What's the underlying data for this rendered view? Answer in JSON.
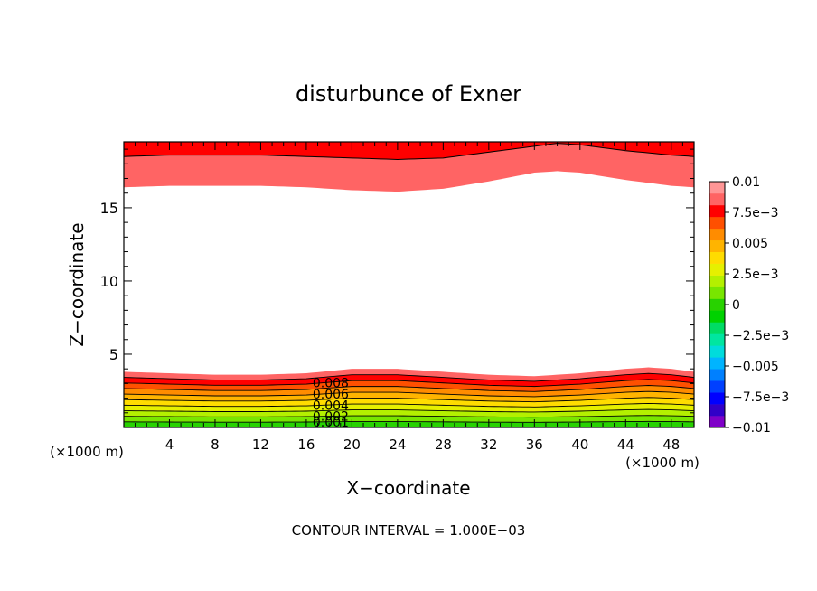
{
  "chart_data": {
    "type": "contour",
    "title": "disturbunce of Exner",
    "xlabel": "X−coordinate",
    "ylabel": "Z−coordinate",
    "x_unit": "(×1000 m)",
    "x_unit_right": "(×1000 m)",
    "xlim": [
      0,
      50
    ],
    "ylim": [
      0,
      19.5
    ],
    "x_ticks": [
      4,
      8,
      12,
      16,
      20,
      24,
      28,
      32,
      36,
      40,
      44,
      48
    ],
    "x_tick_labels": [
      "4",
      "8",
      "12",
      "16",
      "20",
      "24",
      "28",
      "32",
      "36",
      "40",
      "44",
      "48"
    ],
    "y_ticks": [
      5,
      10,
      15
    ],
    "y_tick_labels": [
      "5",
      "10",
      "15"
    ],
    "footer": "CONTOUR INTERVAL = 1.000E−03",
    "contour_interval": 0.001,
    "contour_labels": [
      "0.008",
      "0.006",
      "0.004",
      "0.002",
      "0.001"
    ],
    "colorbar": {
      "levels": [
        -0.01,
        -0.009,
        -0.008,
        -0.007,
        -0.006,
        -0.005,
        -0.004,
        -0.003,
        -0.002,
        -0.001,
        0,
        0.001,
        0.002,
        0.003,
        0.004,
        0.005,
        0.006,
        0.007,
        0.008,
        0.009,
        0.01
      ],
      "tick_labels": [
        "0.01",
        "7.5e−3",
        "0.005",
        "2.5e−3",
        "0",
        "−2.5e−3",
        "−0.005",
        "−7.5e−3",
        "−0.01"
      ],
      "colors": [
        "#7f00c8",
        "#3200c8",
        "#0000ff",
        "#0040ff",
        "#0080ff",
        "#00b4ff",
        "#00dcdc",
        "#00e6a0",
        "#00dc64",
        "#00d200",
        "#28d200",
        "#78e600",
        "#b4f000",
        "#e6f000",
        "#ffdc00",
        "#ffb400",
        "#ff8c00",
        "#ff5000",
        "#ff0000",
        "#ff6464",
        "#ff9696"
      ]
    },
    "top_band": {
      "x": [
        0,
        4,
        8,
        12,
        16,
        20,
        24,
        28,
        32,
        36,
        38,
        40,
        44,
        48,
        50
      ],
      "bottom_z": [
        16.4,
        16.5,
        16.5,
        16.5,
        16.4,
        16.2,
        16.1,
        16.3,
        16.8,
        17.4,
        17.5,
        17.4,
        16.9,
        16.5,
        16.4
      ],
      "line_z": [
        18.5,
        18.6,
        18.6,
        18.6,
        18.5,
        18.4,
        18.3,
        18.4,
        18.8,
        19.2,
        19.4,
        19.3,
        18.9,
        18.6,
        18.5
      ]
    },
    "bottom_band": {
      "x": [
        0,
        4,
        8,
        12,
        16,
        20,
        24,
        28,
        32,
        36,
        40,
        44,
        46,
        48,
        50
      ],
      "top_z": [
        3.8,
        3.7,
        3.6,
        3.6,
        3.7,
        4.0,
        4.0,
        3.8,
        3.6,
        3.5,
        3.7,
        4.0,
        4.1,
        4.0,
        3.8
      ]
    }
  }
}
